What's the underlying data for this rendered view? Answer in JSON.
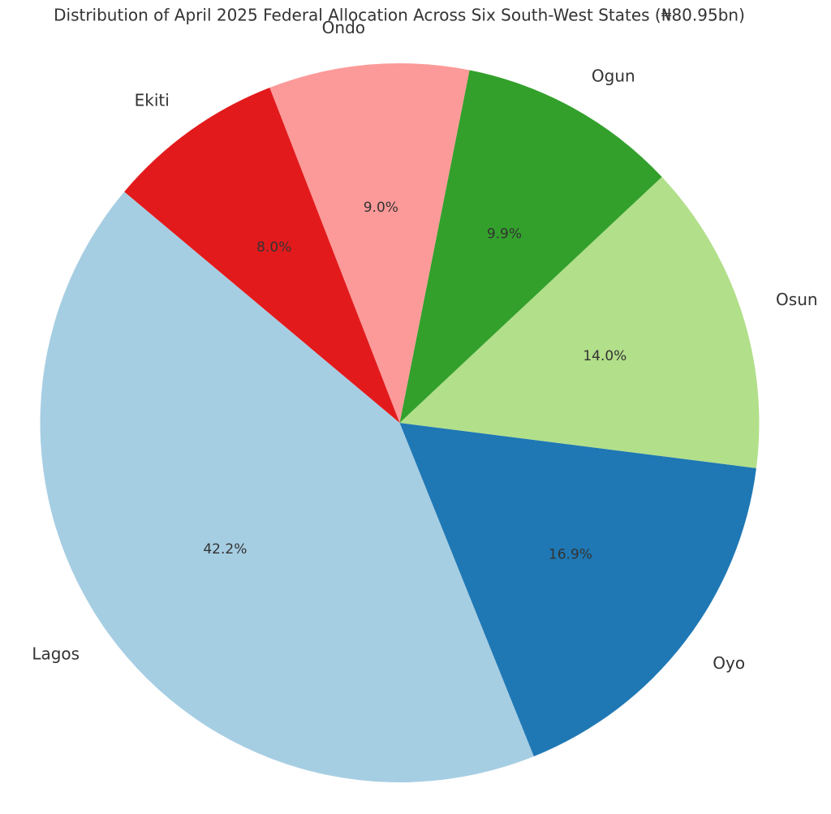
{
  "chart_data": {
    "type": "pie",
    "title": "Distribution of April 2025 Federal Allocation Across Six South-West States (₦80.95bn)",
    "categories": [
      "Lagos",
      "Oyo",
      "Osun",
      "Ogun",
      "Ondo",
      "Ekiti"
    ],
    "values": [
      42.2,
      16.9,
      14.0,
      9.9,
      9.0,
      8.0
    ],
    "value_labels": [
      "42.2%",
      "16.9%",
      "14.0%",
      "9.9%",
      "9.0%",
      "8.0%"
    ],
    "colors": [
      "#a6cee3",
      "#1f78b4",
      "#b2df8a",
      "#33a02c",
      "#fb9a99",
      "#e31a1c"
    ]
  }
}
